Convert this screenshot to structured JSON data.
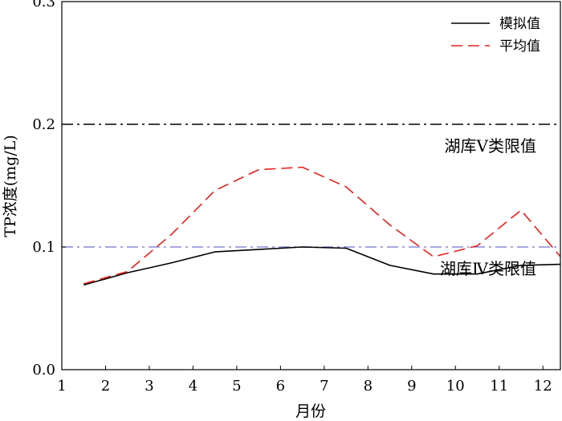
{
  "chart_data": {
    "type": "line",
    "xlabel": "月份",
    "ylabel": "TP浓度(mg/L)",
    "xlim": [
      1,
      12.4
    ],
    "ylim": [
      0,
      0.3
    ],
    "xticks": [
      1,
      2,
      3,
      4,
      5,
      6,
      7,
      8,
      9,
      10,
      11,
      12
    ],
    "xtick_labels": [
      "1",
      "2",
      "3",
      "4",
      "5",
      "6",
      "7",
      "8",
      "9",
      "10",
      "11",
      "12"
    ],
    "yticks": [
      0,
      0.1,
      0.2,
      0.3
    ],
    "ytick_labels": [
      "0.0",
      "0.1",
      "0.2",
      "0.3"
    ],
    "grid": false,
    "legend_position": "top-right",
    "series": [
      {
        "name": "模拟值",
        "style": "solid",
        "color": "#000000",
        "x": [
          1.5,
          2.5,
          3.5,
          4.5,
          5.5,
          6.5,
          7.5,
          8.5,
          9.5,
          10.5,
          11.5,
          12.5
        ],
        "y": [
          0.069,
          0.079,
          0.087,
          0.096,
          0.098,
          0.1,
          0.099,
          0.085,
          0.078,
          0.078,
          0.085,
          0.086
        ]
      },
      {
        "name": "平均值",
        "style": "dashed",
        "color": "#e8201a",
        "x": [
          1.5,
          2.5,
          3.5,
          4.5,
          5.5,
          6.5,
          7.5,
          8.5,
          9.5,
          10.5,
          11.5,
          12.5
        ],
        "y": [
          0.07,
          0.08,
          0.11,
          0.146,
          0.163,
          0.165,
          0.149,
          0.118,
          0.092,
          0.101,
          0.13,
          0.088
        ]
      }
    ],
    "reference_lines": [
      {
        "y": 0.2,
        "label": "湖库Ⅴ类限值",
        "style": "dashdot",
        "color": "#000000"
      },
      {
        "y": 0.1,
        "label": "湖库Ⅳ类限值",
        "style": "dashdot",
        "color": "#8a8ad8"
      }
    ]
  }
}
